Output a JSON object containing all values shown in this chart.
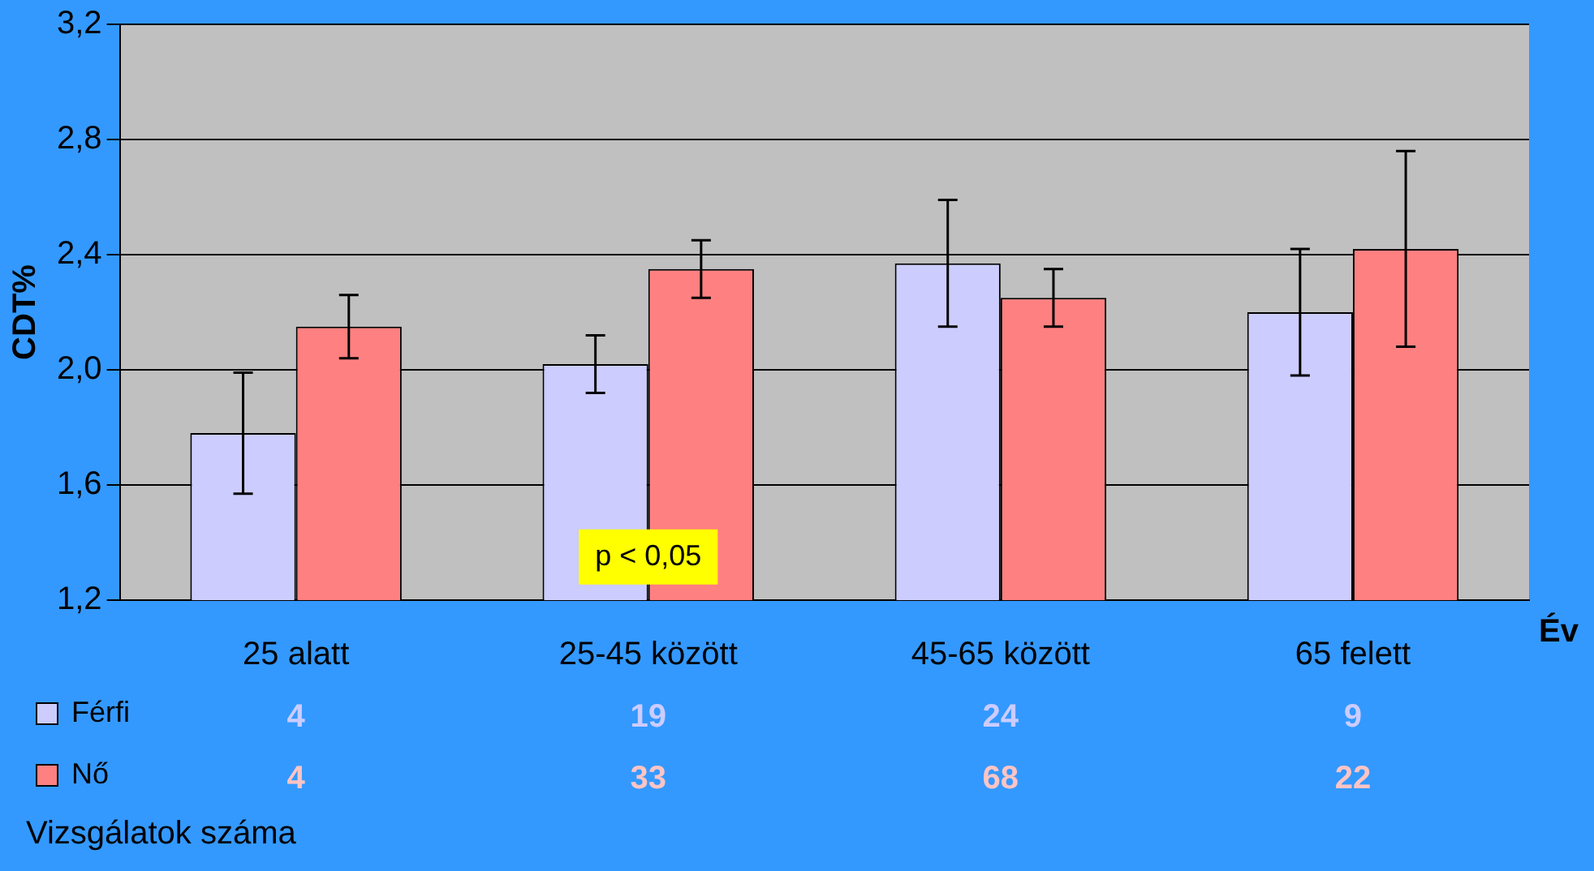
{
  "chart_data": {
    "type": "bar",
    "ylabel": "CDT%",
    "xlabel": "Év",
    "categories": [
      "25 alatt",
      "25-45 között",
      "45-65 között",
      "65 felett"
    ],
    "series": [
      {
        "name": "Férfi",
        "color": "#ccccff",
        "values": [
          1.78,
          2.02,
          2.37,
          2.2
        ],
        "errors": [
          0.21,
          0.1,
          0.22,
          0.22
        ]
      },
      {
        "name": "Nő",
        "color": "#ff8080",
        "values": [
          2.15,
          2.35,
          2.25,
          2.42
        ],
        "errors": [
          0.11,
          0.1,
          0.1,
          0.34
        ]
      }
    ],
    "ylim": [
      1.2,
      3.2
    ],
    "yticks": [
      {
        "value": 1.2,
        "label": "1,2"
      },
      {
        "value": 1.6,
        "label": "1,6"
      },
      {
        "value": 2.0,
        "label": "2,0"
      },
      {
        "value": 2.4,
        "label": "2,4"
      },
      {
        "value": 2.8,
        "label": "2,8"
      },
      {
        "value": 3.2,
        "label": "3,2"
      }
    ],
    "grid": "y",
    "legend": "bottom left",
    "annotations": [
      {
        "text": "p < 0,05",
        "x": "25-45 között",
        "y": 1.35
      },
      {
        "text": "4",
        "x": "25 alatt"
      },
      {
        "text": "19",
        "x": "25-45 között"
      },
      {
        "text": "24",
        "x": "45-65 között"
      },
      {
        "text": "9",
        "x": "65 felett"
      },
      {
        "text": "4",
        "x": "25 alatt"
      },
      {
        "text": "33",
        "x": "25-45 között"
      },
      {
        "text": "68",
        "x": "45-65 között"
      },
      {
        "text": "22",
        "x": "65 felett"
      },
      "Vizsgálatok száma"
    ]
  }
}
